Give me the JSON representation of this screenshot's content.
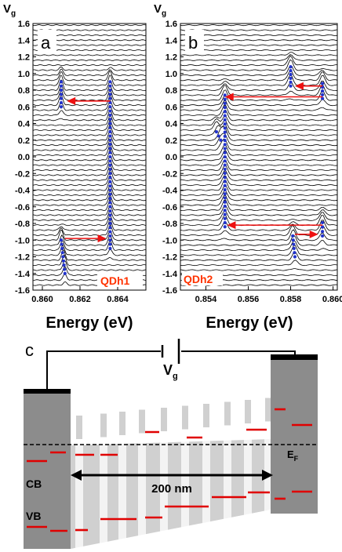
{
  "chart_data": [
    {
      "type": "line",
      "panel": "a",
      "ylabel_main": "V",
      "ylabel_sub": "g",
      "xlabel": "Energy (eV)",
      "tag": "QDh1",
      "xlim": [
        0.8595,
        0.8655
      ],
      "ylim": [
        -1.6,
        1.6
      ],
      "xticks": [
        "0.860",
        "0.862",
        "0.864"
      ],
      "xtick_values": [
        0.86,
        0.862,
        0.864
      ],
      "yticks": [
        "1.6",
        "1.4",
        "1.2",
        "1.0",
        "0.8",
        "0.6",
        "0.4",
        "0.2",
        "0.0",
        "-0.2",
        "-0.4",
        "-0.6",
        "-0.8",
        "-1.0",
        "-1.2",
        "-1.4",
        "-1.6"
      ],
      "peak_tracks": [
        {
          "vg": [
            0.9,
            0.6
          ],
          "energy": [
            0.861,
            0.861
          ]
        },
        {
          "vg": [
            0.9,
            -1.1
          ],
          "energy": [
            0.8636,
            0.8636
          ]
        },
        {
          "vg": [
            -1.0,
            -1.4
          ],
          "energy": [
            0.861,
            0.8612
          ]
        }
      ],
      "arrows": [
        {
          "from": [
            0.8636,
            0.67
          ],
          "to": [
            0.8613,
            0.67
          ]
        },
        {
          "from": [
            0.8612,
            -0.98
          ],
          "to": [
            0.8634,
            -0.98
          ]
        }
      ],
      "colors": {
        "trace": "#000000",
        "peaks": "#2233cc",
        "arrows": "#ee1111",
        "tag": "#ff3300"
      }
    },
    {
      "type": "line",
      "panel": "b",
      "ylabel_main": "V",
      "ylabel_sub": "g",
      "xlabel": "Energy (eV)",
      "tag": "QDh2",
      "xlim": [
        0.8528,
        0.8602
      ],
      "ylim": [
        -1.6,
        1.6
      ],
      "xticks": [
        "0.854",
        "0.856",
        "0.858",
        "0.860"
      ],
      "xtick_values": [
        0.854,
        0.856,
        0.858,
        0.86
      ],
      "yticks": [
        "1.6",
        "1.4",
        "1.2",
        "1.0",
        "0.8",
        "0.6",
        "0.4",
        "0.2",
        "0.0",
        "-0.2",
        "-0.4",
        "-0.6",
        "-0.8",
        "-1.0",
        "-1.2",
        "-1.4",
        "-1.6"
      ],
      "peak_tracks": [
        {
          "vg": [
            1.08,
            0.85
          ],
          "energy": [
            0.858,
            0.858
          ]
        },
        {
          "vg": [
            0.88,
            0.7
          ],
          "energy": [
            0.8595,
            0.8595
          ]
        },
        {
          "vg": [
            0.74,
            -0.84
          ],
          "energy": [
            0.8549,
            0.8549
          ]
        },
        {
          "vg": [
            0.3,
            0.2
          ],
          "energy": [
            0.8545,
            0.8547
          ]
        },
        {
          "vg": [
            -0.79,
            -0.95
          ],
          "energy": [
            0.8595,
            0.8595
          ]
        },
        {
          "vg": [
            -0.95,
            -1.2
          ],
          "energy": [
            0.8581,
            0.8582
          ]
        }
      ],
      "arrows": [
        {
          "from": [
            0.8595,
            0.72
          ],
          "to": [
            0.8549,
            0.72
          ]
        },
        {
          "from": [
            0.8595,
            0.85
          ],
          "to": [
            0.8582,
            0.85
          ]
        },
        {
          "from": [
            0.8595,
            -0.82
          ],
          "to": [
            0.855,
            -0.82
          ]
        },
        {
          "from": [
            0.8582,
            -0.93
          ],
          "to": [
            0.8593,
            -0.93
          ]
        }
      ],
      "colors": {
        "trace": "#000000",
        "peaks": "#2233cc",
        "arrows": "#ee1111",
        "tag": "#ff3300"
      }
    }
  ],
  "panel_c": {
    "label": "c",
    "gate_main": "V",
    "gate_sub": "g",
    "cb_label": "CB",
    "vb_label": "VB",
    "fermi_main": "E",
    "fermi_sub": "F",
    "distance_label": "200 nm",
    "colors": {
      "band": "#d0d0d0",
      "contact": "#8c8c8c",
      "level": "#e00000",
      "wire": "#000000"
    }
  }
}
